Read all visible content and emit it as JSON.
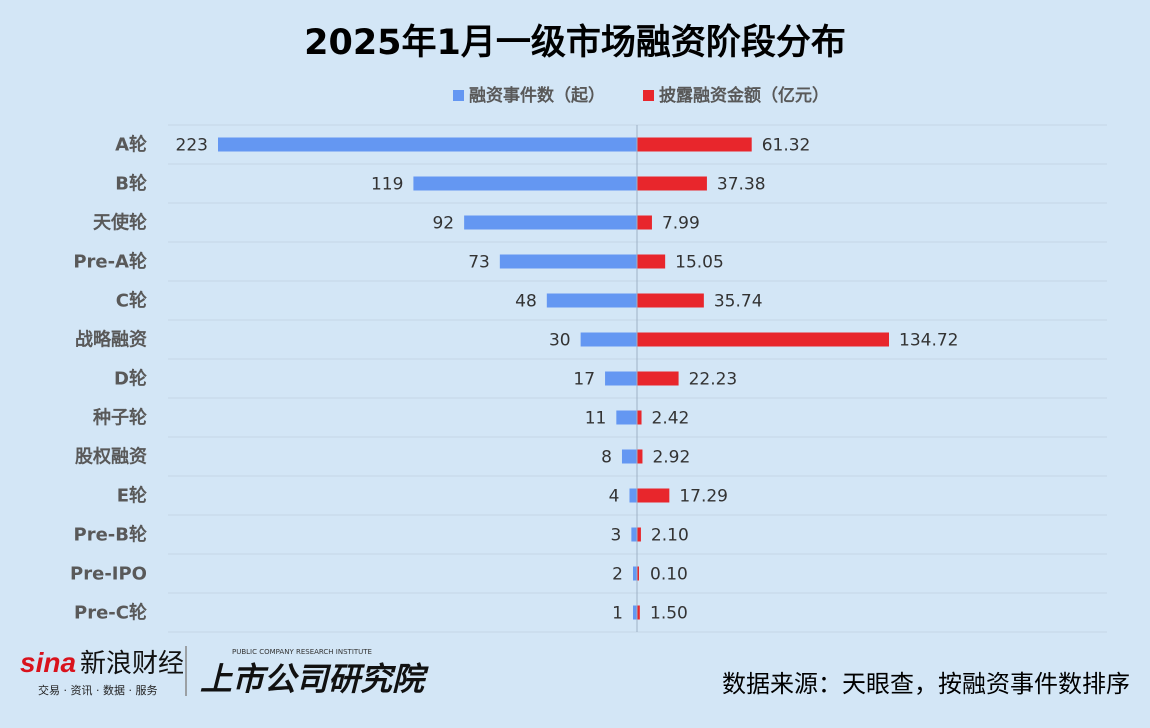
{
  "chart_data": {
    "type": "bar",
    "orientation": "diverging-horizontal",
    "title": "2025年1月一级市场融资阶段分布",
    "categories": [
      "A轮",
      "B轮",
      "天使轮",
      "Pre-A轮",
      "C轮",
      "战略融资",
      "D轮",
      "种子轮",
      "股权融资",
      "E轮",
      "Pre-B轮",
      "Pre-IPO",
      "Pre-C轮"
    ],
    "series": [
      {
        "name": "融资事件数（起）",
        "color": "#6497f2",
        "values": [
          223,
          119,
          92,
          73,
          48,
          30,
          17,
          11,
          8,
          4,
          3,
          2,
          1
        ],
        "labels": [
          "223",
          "119",
          "92",
          "73",
          "48",
          "30",
          "17",
          "11",
          "8",
          "4",
          "3",
          "2",
          "1"
        ]
      },
      {
        "name": "披露融资金额（亿元）",
        "color": "#e8262c",
        "values": [
          61.32,
          37.38,
          7.99,
          15.05,
          35.74,
          134.72,
          22.23,
          2.42,
          2.92,
          17.29,
          2.1,
          0.1,
          1.5
        ],
        "labels": [
          "61.32",
          "37.38",
          "7.99",
          "15.05",
          "35.74",
          "134.72",
          "22.23",
          "2.42",
          "2.92",
          "17.29",
          "2.10",
          "0.10",
          "1.50"
        ]
      }
    ],
    "legend_position": "top-center",
    "grid": true
  },
  "footer": {
    "source": "数据来源：天眼查，按融资事件数排序",
    "brand_sina_logo": "sina",
    "brand_sina_name": "新浪财经",
    "brand_sina_tagline": "交易 · 资讯 · 数据 · 服务",
    "brand_pcri_small": "PUBLIC COMPANY RESEARCH INSTITUTE",
    "brand_pcri_name": "上市公司研究院"
  },
  "colors": {
    "background": "#d3e6f6",
    "brand_red": "#d9121c"
  }
}
